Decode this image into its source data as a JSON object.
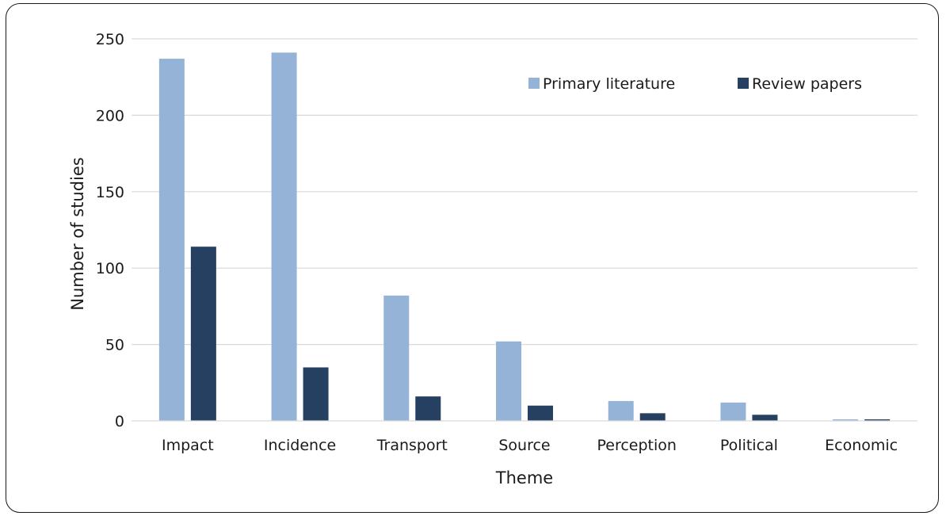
{
  "chart_data": {
    "type": "bar",
    "title": "",
    "xlabel": "Theme",
    "ylabel": "Number of studies",
    "categories": [
      "Impact",
      "Incidence",
      "Transport",
      "Source",
      "Perception",
      "Political",
      "Economic"
    ],
    "series": [
      {
        "name": "Primary literature",
        "color": "#95b3d7",
        "values": [
          237,
          241,
          82,
          52,
          13,
          12,
          1
        ]
      },
      {
        "name": "Review papers",
        "color": "#254061",
        "values": [
          114,
          35,
          16,
          10,
          5,
          4,
          1
        ]
      }
    ],
    "ylim": [
      0,
      250
    ],
    "yticks": [
      0,
      50,
      100,
      150,
      200,
      250
    ],
    "grid": true,
    "legend_position": "top-right"
  }
}
